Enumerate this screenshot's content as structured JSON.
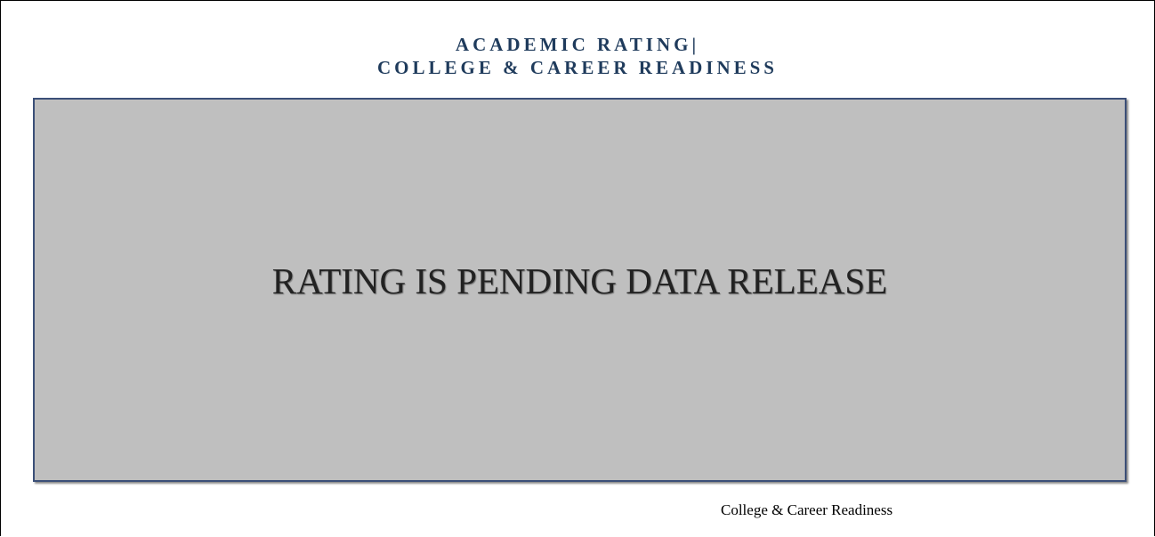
{
  "header": {
    "title_line1": "ACADEMIC RATING|",
    "title_line2": "COLLEGE & CAREER READINESS"
  },
  "panel": {
    "message": "RATING IS PENDING DATA RELEASE"
  },
  "footer": {
    "caption": "College & Career Readiness"
  }
}
